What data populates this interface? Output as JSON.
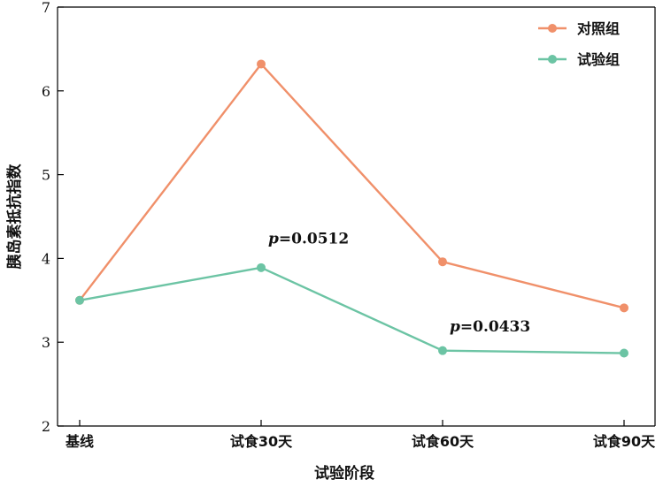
{
  "chart_data": {
    "type": "line",
    "categories": [
      "基线",
      "试食30天",
      "试食60天",
      "试食90天"
    ],
    "series": [
      {
        "name": "对照组",
        "values": [
          3.5,
          6.32,
          3.96,
          3.41
        ],
        "color": "#f0906a"
      },
      {
        "name": "试验组",
        "values": [
          3.5,
          3.89,
          2.9,
          2.87
        ],
        "color": "#6cc4a4"
      }
    ],
    "xlabel": "试验阶段",
    "ylabel": "胰岛素抵抗指数",
    "ylim": [
      2,
      7
    ],
    "yticks": [
      2,
      3,
      4,
      5,
      6,
      7
    ],
    "grid": false,
    "legend_position": "top-right",
    "annotations": [
      {
        "prefix": "p",
        "text": "=0.0512",
        "category": "试食30天",
        "y": 4.18
      },
      {
        "prefix": "p",
        "text": "=0.0433",
        "category": "试食60天",
        "y": 3.13
      }
    ]
  }
}
